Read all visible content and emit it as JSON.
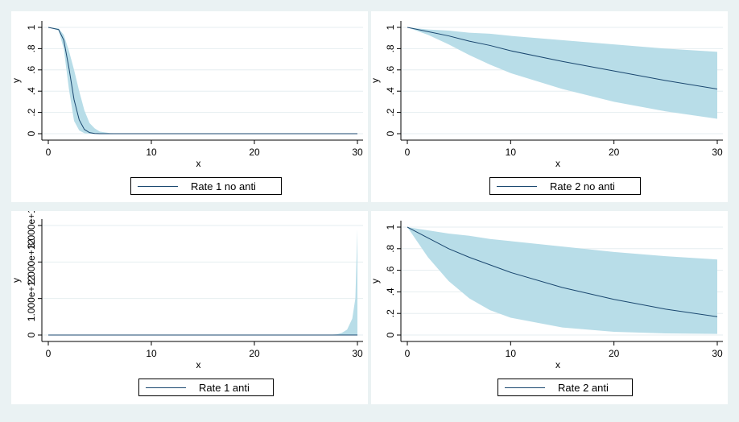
{
  "chart_data": [
    {
      "type": "area",
      "xlabel": "x",
      "ylabel": "y",
      "xlim": [
        0,
        30
      ],
      "ylim": [
        0,
        1
      ],
      "xticks": [
        "0",
        "10",
        "20",
        "30"
      ],
      "yticks": [
        "0",
        ".2",
        ".4",
        ".6",
        ".8",
        "1"
      ],
      "grid": true,
      "legend_position": "bottom",
      "series": [
        {
          "name": "Rate 1 no anti",
          "x": [
            0,
            1,
            1.5,
            2,
            2.5,
            3,
            3.5,
            4,
            4.5,
            5,
            6,
            8,
            30
          ],
          "values": [
            1,
            0.98,
            0.88,
            0.62,
            0.32,
            0.13,
            0.04,
            0.01,
            0.002,
            0,
            0,
            0,
            0
          ],
          "lower": [
            1,
            0.97,
            0.8,
            0.42,
            0.12,
            0.03,
            0.005,
            0,
            0,
            0,
            0,
            0,
            0
          ],
          "upper": [
            1,
            0.99,
            0.93,
            0.78,
            0.6,
            0.4,
            0.22,
            0.1,
            0.05,
            0.02,
            0.005,
            0,
            0
          ]
        }
      ]
    },
    {
      "type": "area",
      "xlabel": "x",
      "ylabel": "y",
      "xlim": [
        0,
        30
      ],
      "ylim": [
        0,
        1
      ],
      "xticks": [
        "0",
        "10",
        "20",
        "30"
      ],
      "yticks": [
        "0",
        ".2",
        ".4",
        ".6",
        ".8",
        "1"
      ],
      "grid": true,
      "legend_position": "bottom",
      "series": [
        {
          "name": "Rate 2 no anti",
          "x": [
            0,
            2,
            4,
            6,
            8,
            10,
            15,
            20,
            25,
            30
          ],
          "values": [
            1,
            0.96,
            0.92,
            0.87,
            0.83,
            0.78,
            0.68,
            0.59,
            0.5,
            0.42
          ],
          "lower": [
            1,
            0.93,
            0.84,
            0.74,
            0.65,
            0.57,
            0.42,
            0.3,
            0.21,
            0.14
          ],
          "upper": [
            1,
            0.98,
            0.97,
            0.95,
            0.94,
            0.92,
            0.88,
            0.84,
            0.8,
            0.77
          ]
        }
      ]
    },
    {
      "type": "area",
      "xlabel": "x",
      "ylabel": "y",
      "xlim": [
        0,
        30
      ],
      "ylim": [
        0,
        3000000000000
      ],
      "xticks": [
        "0",
        "10",
        "20",
        "30"
      ],
      "yticks": [
        "0",
        "1.000e+12",
        "2.000e+12",
        "3.000e+12"
      ],
      "grid": true,
      "legend_position": "bottom",
      "series": [
        {
          "name": "Rate 1 anti",
          "x": [
            0,
            26,
            27,
            28,
            28.5,
            29,
            29.5,
            29.8,
            30
          ],
          "values": [
            0,
            0,
            0,
            0,
            0,
            0,
            0,
            0,
            0
          ],
          "lower": [
            0,
            0,
            0,
            0,
            0,
            0,
            0,
            0,
            0
          ],
          "upper": [
            0,
            0,
            0,
            20000000000.0,
            60000000000.0,
            150000000000.0,
            450000000000.0,
            1000000000000.0,
            2900000000000.0
          ]
        }
      ]
    },
    {
      "type": "area",
      "xlabel": "x",
      "ylabel": "y",
      "xlim": [
        0,
        30
      ],
      "ylim": [
        0,
        1
      ],
      "xticks": [
        "0",
        "10",
        "20",
        "30"
      ],
      "yticks": [
        "0",
        ".2",
        ".4",
        ".6",
        ".8",
        "1"
      ],
      "grid": true,
      "legend_position": "bottom",
      "series": [
        {
          "name": "Rate 2 anti",
          "x": [
            0,
            2,
            4,
            6,
            8,
            10,
            15,
            20,
            25,
            30
          ],
          "values": [
            1,
            0.9,
            0.8,
            0.72,
            0.65,
            0.58,
            0.44,
            0.33,
            0.24,
            0.17
          ],
          "lower": [
            1,
            0.72,
            0.5,
            0.34,
            0.23,
            0.16,
            0.07,
            0.03,
            0.015,
            0.01
          ],
          "upper": [
            1,
            0.97,
            0.94,
            0.92,
            0.89,
            0.87,
            0.82,
            0.77,
            0.73,
            0.7
          ]
        }
      ]
    }
  ],
  "colors": {
    "band": "#b8dde8",
    "line": "#1a476f",
    "grid": "#e6eef0",
    "background": "#eaf2f3"
  }
}
